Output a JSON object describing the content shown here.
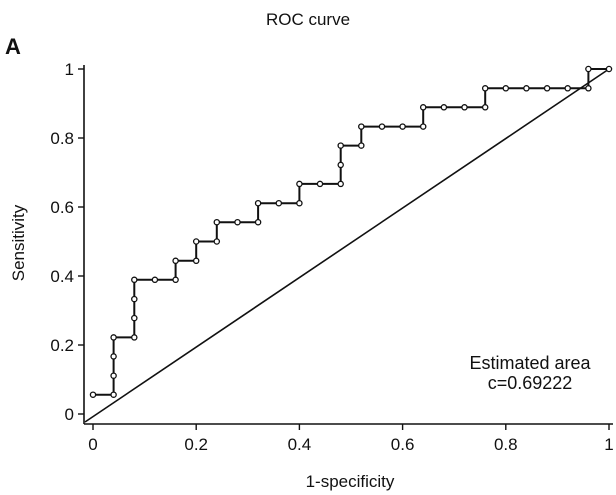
{
  "panel_label": "A",
  "chart_data": {
    "type": "line",
    "title": "ROC curve",
    "xlabel": "1-specificity",
    "ylabel": "Sensitivity",
    "xlim": [
      0,
      1
    ],
    "ylim": [
      0,
      1
    ],
    "xticks": [
      0,
      0.2,
      0.4,
      0.6,
      0.8,
      1
    ],
    "yticks": [
      0,
      0.2,
      0.4,
      0.6,
      0.8,
      1
    ],
    "xtick_labels": [
      "0",
      "0.2",
      "0.4",
      "0.6",
      "0.8",
      "1"
    ],
    "ytick_labels": [
      "0",
      "0.2",
      "0.4",
      "0.6",
      "0.8",
      "1"
    ],
    "grid": false,
    "annotation": [
      "Estimated area",
      "c=0.69222"
    ],
    "reference_line": [
      [
        0,
        0
      ],
      [
        1,
        1
      ]
    ],
    "series": [
      {
        "style": "step-with-markers",
        "points": [
          [
            0,
            0.056
          ],
          [
            0.04,
            0.056
          ],
          [
            0.04,
            0.111
          ],
          [
            0.04,
            0.167
          ],
          [
            0.04,
            0.222
          ],
          [
            0.08,
            0.222
          ],
          [
            0.08,
            0.278
          ],
          [
            0.08,
            0.333
          ],
          [
            0.08,
            0.389
          ],
          [
            0.12,
            0.389
          ],
          [
            0.16,
            0.389
          ],
          [
            0.16,
            0.444
          ],
          [
            0.2,
            0.444
          ],
          [
            0.2,
            0.5
          ],
          [
            0.24,
            0.5
          ],
          [
            0.24,
            0.556
          ],
          [
            0.28,
            0.556
          ],
          [
            0.32,
            0.556
          ],
          [
            0.32,
            0.611
          ],
          [
            0.36,
            0.611
          ],
          [
            0.4,
            0.611
          ],
          [
            0.4,
            0.667
          ],
          [
            0.44,
            0.667
          ],
          [
            0.48,
            0.667
          ],
          [
            0.48,
            0.722
          ],
          [
            0.48,
            0.778
          ],
          [
            0.52,
            0.778
          ],
          [
            0.52,
            0.833
          ],
          [
            0.56,
            0.833
          ],
          [
            0.6,
            0.833
          ],
          [
            0.64,
            0.833
          ],
          [
            0.64,
            0.889
          ],
          [
            0.68,
            0.889
          ],
          [
            0.72,
            0.889
          ],
          [
            0.76,
            0.889
          ],
          [
            0.76,
            0.944
          ],
          [
            0.8,
            0.944
          ],
          [
            0.84,
            0.944
          ],
          [
            0.88,
            0.944
          ],
          [
            0.92,
            0.944
          ],
          [
            0.96,
            0.944
          ],
          [
            0.96,
            1.0
          ],
          [
            1.0,
            1.0
          ]
        ]
      }
    ],
    "colors": {
      "line": "#111111",
      "marker_fill": "#ffffff"
    }
  }
}
